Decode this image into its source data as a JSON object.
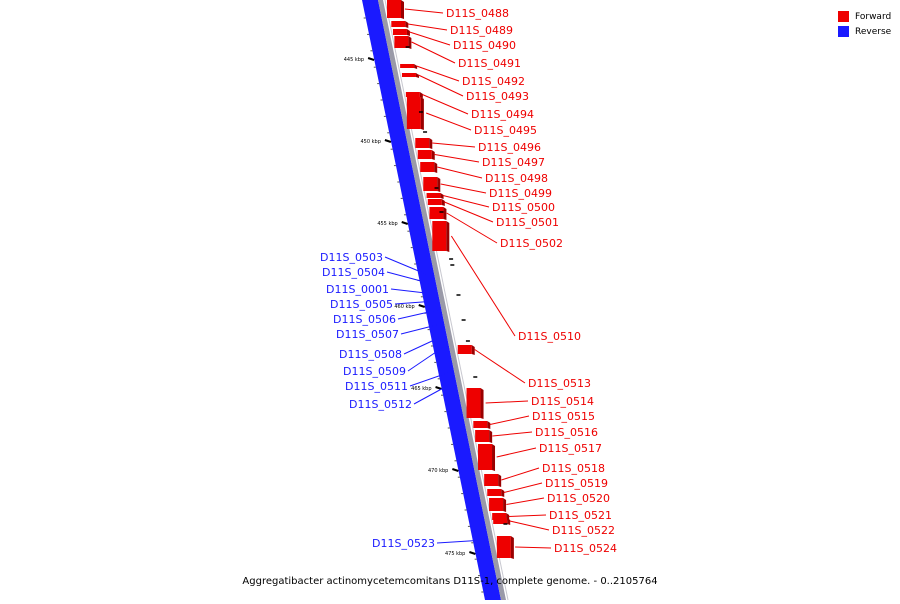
{
  "caption": "Aggregatibacter actinomycetemcomitans D11S-1, complete genome. - 0..2105764",
  "legend": {
    "forward_label": "Forward",
    "reverse_label": "Reverse",
    "forward_color": "#ee0000",
    "reverse_color": "#1a1aff"
  },
  "colors": {
    "forward": "#ee0000",
    "reverse": "#1a1aff",
    "backbone": "#1a1aff"
  },
  "ticks": [
    {
      "label": "445 kbp",
      "kbp": 445
    },
    {
      "label": "450 kbp",
      "kbp": 450
    },
    {
      "label": "455 kbp",
      "kbp": 455
    },
    {
      "label": "460 kbp",
      "kbp": 460
    },
    {
      "label": "465 kbp",
      "kbp": 465
    },
    {
      "label": "470 kbp",
      "kbp": 470
    },
    {
      "label": "475 kbp",
      "kbp": 475
    }
  ],
  "forward_genes": [
    "D11S_0488",
    "D11S_0489",
    "D11S_0490",
    "D11S_0491",
    "D11S_0492",
    "D11S_0493",
    "D11S_0494",
    "D11S_0495",
    "D11S_0496",
    "D11S_0497",
    "D11S_0498",
    "D11S_0499",
    "D11S_0500",
    "D11S_0501",
    "D11S_0502",
    "D11S_0510",
    "D11S_0513",
    "D11S_0514",
    "D11S_0515",
    "D11S_0516",
    "D11S_0517",
    "D11S_0518",
    "D11S_0519",
    "D11S_0520",
    "D11S_0521",
    "D11S_0522",
    "D11S_0524"
  ],
  "reverse_genes": [
    "D11S_0503",
    "D11S_0504",
    "D11S_0001",
    "D11S_0505",
    "D11S_0506",
    "D11S_0507",
    "D11S_0508",
    "D11S_0509",
    "D11S_0511",
    "D11S_0512",
    "D11S_0523"
  ]
}
